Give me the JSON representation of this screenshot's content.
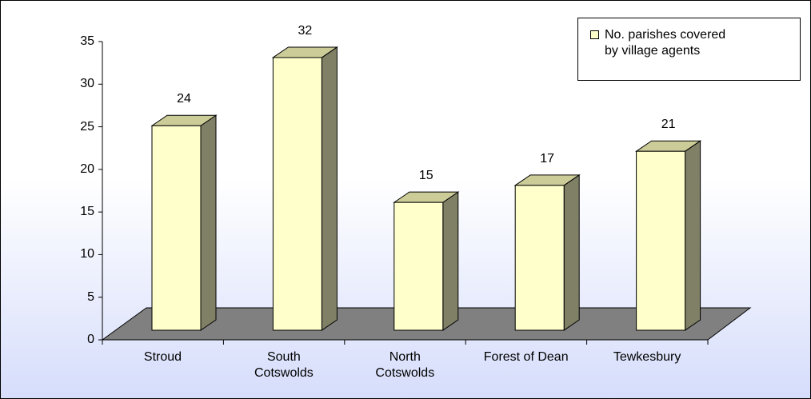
{
  "chart_data": {
    "type": "bar3d",
    "categories": [
      "Stroud",
      "South\nCotswolds",
      "North\nCotswolds",
      "Forest of Dean",
      "Tewkesbury"
    ],
    "series": [
      {
        "name": "No. parishes covered\nby village agents",
        "color": "#ffffcc",
        "values": [
          24,
          32,
          15,
          17,
          21
        ]
      }
    ],
    "ylim": [
      0,
      35
    ],
    "yticks": [
      0,
      5,
      10,
      15,
      20,
      25,
      30,
      35
    ],
    "legend": "top-right"
  }
}
